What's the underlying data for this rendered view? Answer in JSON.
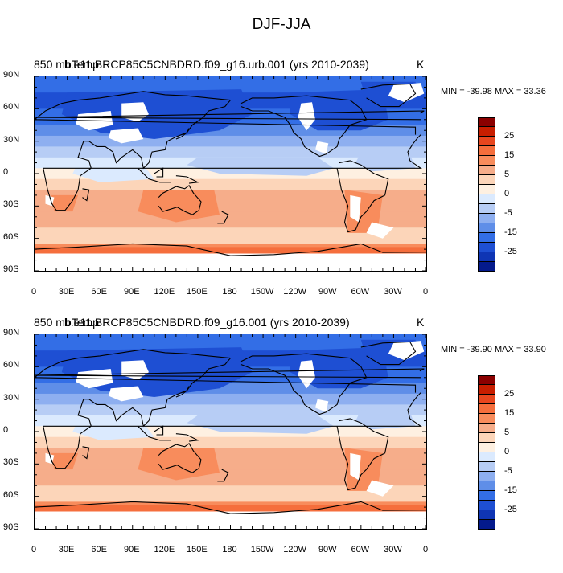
{
  "figure": {
    "title": "DJF-JJA",
    "colors": {
      "bin_colors": [
        "#8b0000",
        "#c81e00",
        "#e8461e",
        "#f56e3c",
        "#f88c5c",
        "#f6ad8a",
        "#fcd5b9",
        "#fef0e1",
        "#dbeafe",
        "#b7cdf5",
        "#8eaff0",
        "#5f8ee8",
        "#336ee6",
        "#1e4fd3",
        "#0f35b4",
        "#041a8c"
      ],
      "land_mask": "#ffffff",
      "coast": "#000000"
    },
    "axes": {
      "y_labels": [
        "90N",
        "60N",
        "30N",
        "0",
        "30S",
        "60S",
        "90S"
      ],
      "x_labels": [
        "0",
        "30E",
        "60E",
        "90E",
        "120E",
        "150E",
        "180",
        "150W",
        "120W",
        "90W",
        "60W",
        "30W",
        "0"
      ]
    },
    "colorbar": {
      "labels": [
        "25",
        "15",
        "5",
        "0",
        "-5",
        "-15",
        "-25"
      ]
    },
    "panels": [
      {
        "left_label": "850 mbTemp",
        "center_label": "b.e11.BRCP85C5CNBDRD.f09_g16.urb.001 (yrs 2010-2039)",
        "units": "K",
        "minmax": "MIN = -39.98 MAX =  33.36"
      },
      {
        "left_label": "850 mbTemp",
        "center_label": "b.e11.BRCP85C5CNBDRD.f09_g16.001 (yrs 2010-2039)",
        "units": "K",
        "minmax": "MIN = -39.90 MAX =  33.90"
      }
    ]
  }
}
